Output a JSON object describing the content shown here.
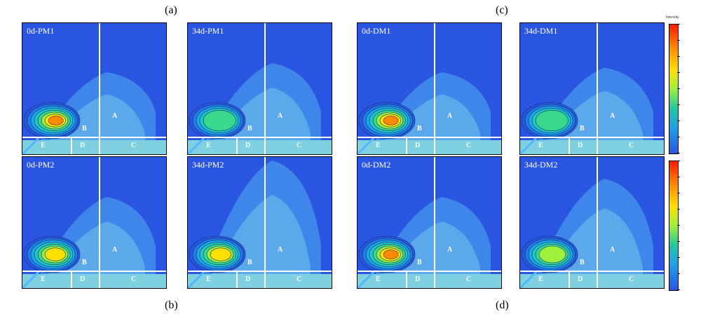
{
  "panel_letters": {
    "a": "(a)",
    "b": "(b)",
    "c": "(c)",
    "d": "(d)"
  },
  "colorbar_title": "Intensity",
  "chart_data": [
    {
      "type": "heatmap",
      "title": "0d-PM1",
      "regions": [
        "A",
        "B",
        "C",
        "D",
        "E"
      ],
      "peak": 1.0,
      "spread": 0.9
    },
    {
      "type": "heatmap",
      "title": "34d-PM1",
      "regions": [
        "A",
        "B",
        "C",
        "D",
        "E"
      ],
      "peak": 0.55,
      "spread": 1.0
    },
    {
      "type": "heatmap",
      "title": "0d-DM1",
      "regions": [
        "A",
        "B",
        "C",
        "D",
        "E"
      ],
      "peak": 1.0,
      "spread": 0.9
    },
    {
      "type": "heatmap",
      "title": "34d-DM1",
      "regions": [
        "A",
        "B",
        "C",
        "D",
        "E"
      ],
      "peak": 0.5,
      "spread": 0.95
    },
    {
      "type": "heatmap",
      "title": "0d-PM2",
      "regions": [
        "A",
        "B",
        "C",
        "D",
        "E"
      ],
      "peak": 0.85,
      "spread": 1.0
    },
    {
      "type": "heatmap",
      "title": "34d-PM2",
      "regions": [
        "A",
        "B",
        "C",
        "D",
        "E"
      ],
      "peak": 0.75,
      "spread": 1.4
    },
    {
      "type": "heatmap",
      "title": "0d-DM2",
      "regions": [
        "A",
        "B",
        "C",
        "D",
        "E"
      ],
      "peak": 0.95,
      "spread": 1.0
    },
    {
      "type": "heatmap",
      "title": "34d-DM2",
      "regions": [
        "A",
        "B",
        "C",
        "D",
        "E"
      ],
      "peak": 0.6,
      "spread": 1.2
    }
  ]
}
